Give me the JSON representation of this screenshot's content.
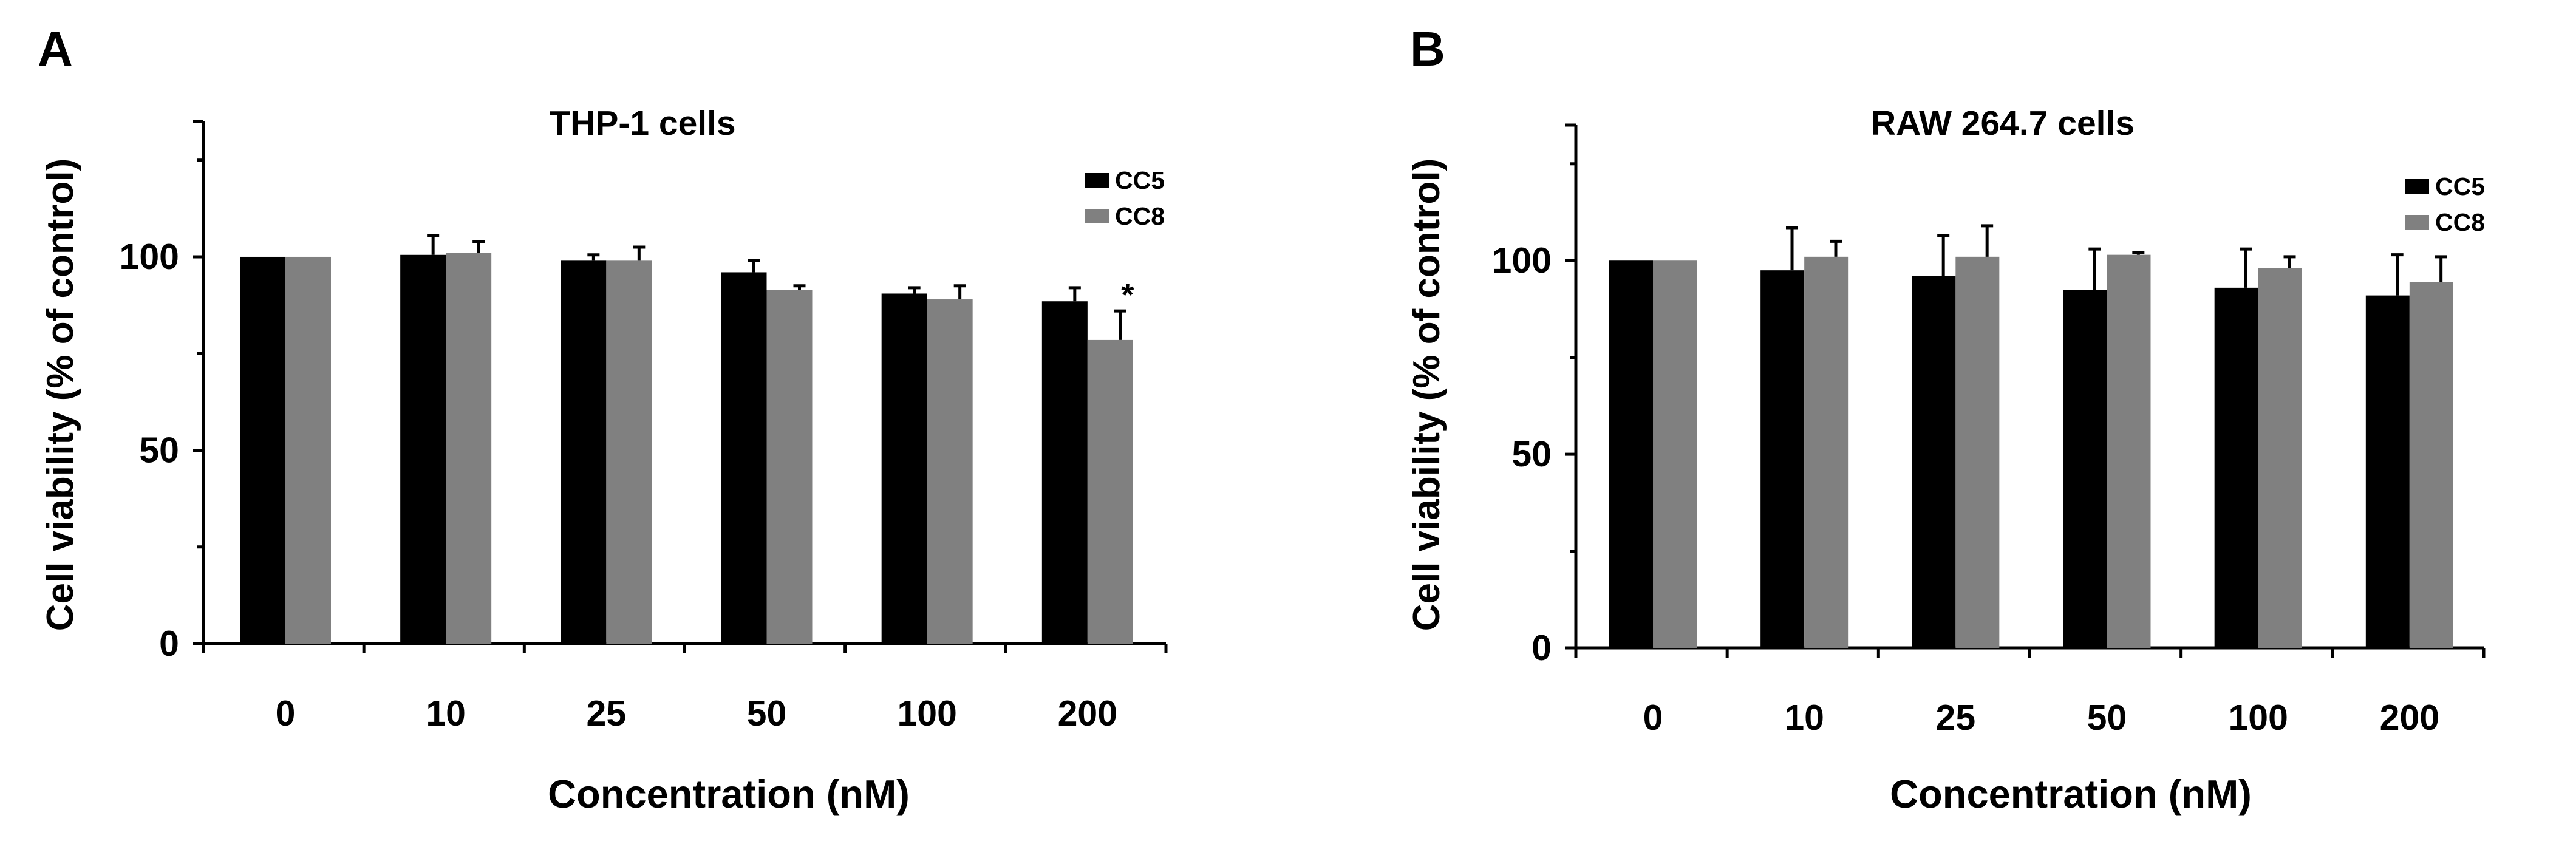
{
  "panels": [
    "A",
    "B"
  ],
  "chart_data": [
    {
      "type": "bar",
      "panel": "A",
      "title": "THP-1 cells",
      "xlabel": "Concentration (nM)",
      "ylabel": "Cell viability (% of control)",
      "ylim": [
        0,
        135
      ],
      "yticks": [
        0,
        50,
        100
      ],
      "categories": [
        "0",
        "10",
        "25",
        "50",
        "100",
        "200"
      ],
      "series": [
        {
          "name": "CC5",
          "color": "#000000",
          "values": [
            100,
            100.5,
            99,
            96,
            90.5,
            88.5
          ],
          "errors": [
            0,
            5,
            1.5,
            3,
            1.5,
            3.5
          ]
        },
        {
          "name": "CC8",
          "color": "#808080",
          "values": [
            100,
            101,
            99,
            91.5,
            89,
            78.5
          ],
          "errors": [
            0,
            3,
            3.5,
            1,
            3.5,
            7.5
          ]
        }
      ],
      "annotations": [
        {
          "category": "200",
          "series": "CC8",
          "text": "*"
        }
      ],
      "legend_position": "top-right"
    },
    {
      "type": "bar",
      "panel": "B",
      "title": "RAW 264.7 cells",
      "xlabel": "Concentration (nM)",
      "ylabel": "Cell viability (% of control)",
      "ylim": [
        0,
        135
      ],
      "yticks": [
        0,
        50,
        100
      ],
      "categories": [
        "0",
        "10",
        "25",
        "50",
        "100",
        "200"
      ],
      "series": [
        {
          "name": "CC5",
          "color": "#000000",
          "values": [
            100,
            97.5,
            96,
            92.5,
            93,
            91
          ],
          "errors": [
            0,
            11,
            10.5,
            10.5,
            10,
            10.5
          ]
        },
        {
          "name": "CC8",
          "color": "#808080",
          "values": [
            100,
            101,
            101,
            101.5,
            98,
            94.5
          ],
          "errors": [
            0,
            4,
            8,
            0.5,
            3,
            6.5
          ]
        }
      ],
      "annotations": [],
      "legend_position": "top-right"
    }
  ]
}
